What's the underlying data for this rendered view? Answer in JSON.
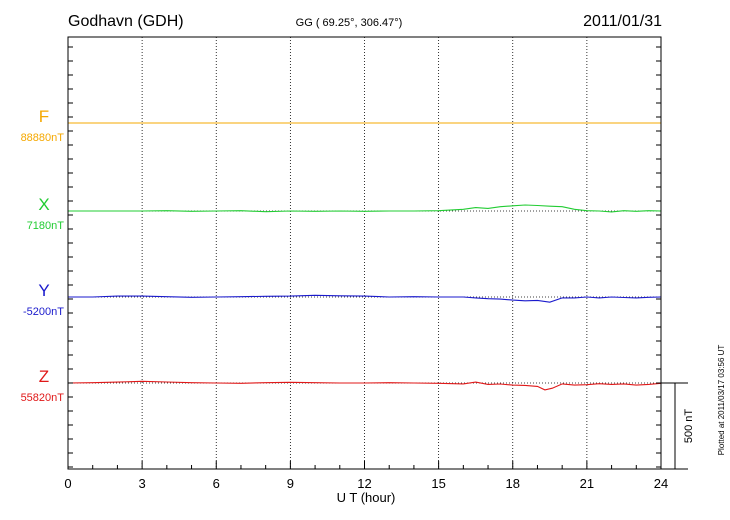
{
  "header": {
    "station": "Godhavn (GDH)",
    "coords": "GG ( 69.25°, 306.47°)",
    "date": "2011/01/31"
  },
  "footer_note": "Plotted at 2011/03/17 03:56 UT",
  "scale_bar": {
    "label": "500 nT",
    "value_nT": 500
  },
  "colors": {
    "F": "#f5a800",
    "X": "#22cc33",
    "Y": "#1a1acc",
    "Z": "#e01818",
    "axis": "#000000"
  },
  "chart_data": {
    "type": "line",
    "title": "Godhavn (GDH)",
    "xlabel": "U T (hour)",
    "ylabel": "",
    "xlim": [
      0,
      24
    ],
    "xticks": [
      "0",
      "3",
      "6",
      "9",
      "12",
      "15",
      "18",
      "21",
      "24"
    ],
    "grid": true,
    "y_units": "nT",
    "series": [
      {
        "name": "F",
        "baseline_label": "88880nT",
        "baseline_nT": 88880,
        "x": [
          0,
          3,
          6,
          9,
          12,
          15,
          18,
          21,
          24
        ],
        "y": [
          88880,
          88880,
          88880,
          88880,
          88880,
          88880,
          88880,
          88880,
          88880
        ]
      },
      {
        "name": "X",
        "baseline_label": "7180nT",
        "baseline_nT": 7180,
        "x": [
          0,
          1,
          2,
          3,
          4,
          5,
          6,
          7,
          8,
          9,
          10,
          11,
          12,
          13,
          14,
          15,
          16,
          16.5,
          17,
          17.5,
          18,
          18.5,
          19,
          19.5,
          20,
          20.5,
          21,
          21.5,
          22,
          22.5,
          23,
          23.5,
          24
        ],
        "y": [
          7180,
          7180,
          7180,
          7180,
          7182,
          7178,
          7180,
          7182,
          7176,
          7180,
          7178,
          7180,
          7178,
          7180,
          7180,
          7182,
          7190,
          7200,
          7195,
          7205,
          7210,
          7215,
          7212,
          7208,
          7205,
          7190,
          7182,
          7180,
          7175,
          7182,
          7178,
          7182,
          7180
        ]
      },
      {
        "name": "Y",
        "baseline_label": "-5200nT",
        "baseline_nT": -5200,
        "x": [
          0,
          1,
          2,
          3,
          4,
          5,
          6,
          7,
          8,
          9,
          10,
          11,
          12,
          13,
          14,
          15,
          16,
          16.5,
          17,
          17.5,
          18,
          18.5,
          19,
          19.5,
          20,
          20.5,
          21,
          21.5,
          22,
          22.5,
          23,
          23.5,
          24
        ],
        "y": [
          -5200,
          -5200,
          -5195,
          -5195,
          -5198,
          -5202,
          -5200,
          -5198,
          -5196,
          -5195,
          -5190,
          -5193,
          -5195,
          -5200,
          -5198,
          -5200,
          -5200,
          -5205,
          -5210,
          -5212,
          -5218,
          -5222,
          -5220,
          -5230,
          -5205,
          -5205,
          -5200,
          -5205,
          -5200,
          -5203,
          -5205,
          -5202,
          -5200
        ]
      },
      {
        "name": "Z",
        "baseline_label": "55820nT",
        "baseline_nT": 55820,
        "x": [
          0,
          1,
          2,
          3,
          4,
          5,
          6,
          7,
          8,
          9,
          10,
          11,
          12,
          13,
          14,
          15,
          16,
          16.5,
          17,
          17.5,
          18,
          18.5,
          19,
          19.3,
          19.6,
          20,
          20.5,
          21,
          21.5,
          22,
          22.5,
          23,
          23.5,
          24
        ],
        "y": [
          55820,
          55822,
          55825,
          55830,
          55826,
          55822,
          55820,
          55818,
          55822,
          55824,
          55822,
          55820,
          55820,
          55822,
          55820,
          55818,
          55815,
          55825,
          55812,
          55814,
          55808,
          55806,
          55800,
          55780,
          55790,
          55815,
          55808,
          55810,
          55816,
          55812,
          55815,
          55808,
          55812,
          55818
        ]
      }
    ]
  }
}
